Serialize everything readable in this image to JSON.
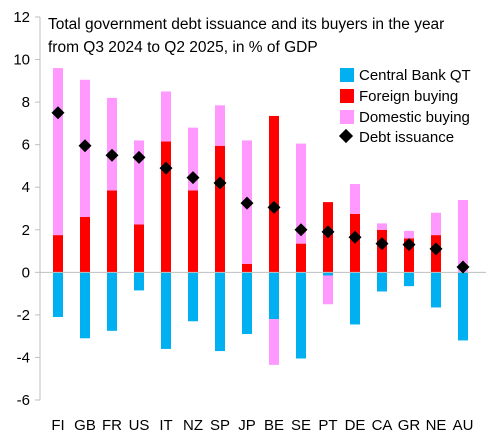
{
  "chart_data": {
    "type": "bar",
    "title_lines": [
      "Total government debt issuance and its buyers in the year",
      "from Q3 2024 to Q2 2025, in % of GDP"
    ],
    "xlabel": "",
    "ylabel": "",
    "categories": [
      "FI",
      "GB",
      "FR",
      "US",
      "IT",
      "NZ",
      "SP",
      "JP",
      "BE",
      "SE",
      "PT",
      "DE",
      "CA",
      "GR",
      "NE",
      "AU"
    ],
    "ylim": [
      -6,
      12
    ],
    "yticks": [
      -6,
      -4,
      -2,
      0,
      2,
      4,
      6,
      8,
      10,
      12
    ],
    "grid": false,
    "legend_position": "top-right",
    "series": [
      {
        "name": "Central Bank QT",
        "kind": "bar",
        "color": "#00B0F0",
        "values": [
          -2.1,
          -3.1,
          -2.75,
          -0.85,
          -3.6,
          -2.3,
          -3.7,
          -2.9,
          -2.2,
          -4.05,
          -0.15,
          -2.45,
          -0.9,
          -0.65,
          -1.65,
          -3.2
        ]
      },
      {
        "name": "Foreign buying",
        "kind": "bar",
        "color": "#FF0000",
        "values": [
          1.75,
          2.6,
          3.85,
          2.25,
          6.15,
          3.85,
          5.95,
          0.4,
          7.35,
          1.35,
          3.3,
          2.75,
          2.0,
          1.6,
          1.75,
          0.0
        ],
        "negative_values": [
          0,
          0,
          0,
          0,
          0,
          0,
          0,
          0,
          0,
          0,
          0,
          0,
          0,
          0,
          0,
          0
        ]
      },
      {
        "name": "Domestic buying",
        "kind": "bar",
        "color": "#FF99FF",
        "values": [
          7.85,
          6.45,
          4.35,
          3.95,
          2.35,
          2.95,
          1.9,
          5.8,
          0.0,
          4.7,
          0.0,
          1.4,
          0.3,
          0.35,
          1.05,
          3.4
        ],
        "negative_values": [
          0,
          0,
          0,
          0,
          0,
          0,
          0,
          0,
          -2.15,
          0,
          -1.35,
          0,
          0,
          0,
          0,
          0
        ]
      },
      {
        "name": "Debt issuance",
        "kind": "marker",
        "color": "#000000",
        "values": [
          7.5,
          5.95,
          5.5,
          5.4,
          4.9,
          4.45,
          4.2,
          3.25,
          3.05,
          2.0,
          1.9,
          1.65,
          1.35,
          1.3,
          1.1,
          0.25
        ]
      }
    ]
  }
}
